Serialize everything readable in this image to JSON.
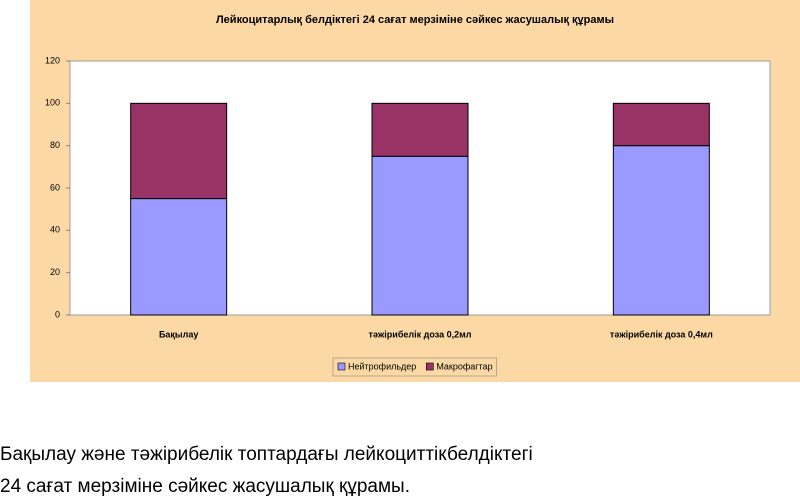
{
  "chart_data": {
    "type": "stacked_bar",
    "title": "Лейкоцитарлық белдіктегі 24 сағат мерзіміне сәйкес жасушалық құрамы",
    "categories": [
      "Бақылау",
      "тәжірибелік доза 0,2мл",
      "тәжірибелік доза 0,4мл"
    ],
    "series": [
      {
        "name": "Нейтрофильдер",
        "color": "#9999ff",
        "values": [
          55,
          75,
          80
        ]
      },
      {
        "name": "Макрофагтар",
        "color": "#993366",
        "values": [
          45,
          25,
          20
        ]
      }
    ],
    "ylim": [
      0,
      120
    ],
    "yticks": [
      0,
      20,
      40,
      60,
      80,
      100,
      120
    ],
    "grid": false,
    "legend": "bottom"
  },
  "caption_lines": [
    "Бақылау және тәжірибелік топтардағы лейкоциттікбелдіктегі",
    "24 сағат мерзіміне сәйкес жасушалық құрамы."
  ]
}
